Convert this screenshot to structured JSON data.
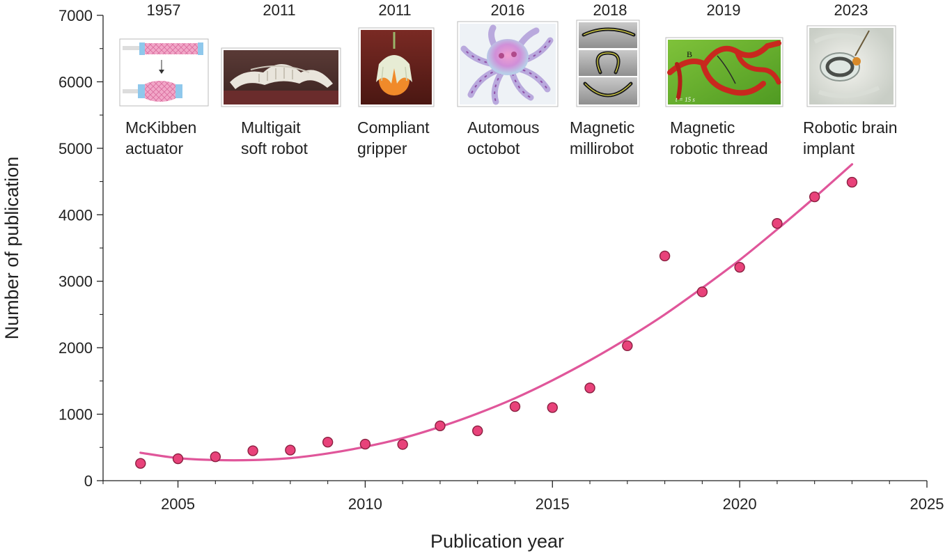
{
  "chart_data": {
    "type": "scatter",
    "title": "",
    "xlabel": "Publication year",
    "ylabel": "Number of publication",
    "xlim": [
      2003,
      2025
    ],
    "ylim": [
      0,
      7000
    ],
    "x_ticks": [
      "2005",
      "2010",
      "2015",
      "2020",
      "2025"
    ],
    "y_ticks": [
      "0",
      "1000",
      "2000",
      "3000",
      "4000",
      "5000",
      "6000",
      "7000"
    ],
    "grid": false,
    "series": [
      {
        "type": "scatter",
        "color": "#e8427a",
        "edge_color": "#8a1f40",
        "points": [
          {
            "x": 2004,
            "y": 260
          },
          {
            "x": 2005,
            "y": 330
          },
          {
            "x": 2006,
            "y": 360
          },
          {
            "x": 2007,
            "y": 450
          },
          {
            "x": 2008,
            "y": 460
          },
          {
            "x": 2009,
            "y": 580
          },
          {
            "x": 2010,
            "y": 550
          },
          {
            "x": 2011,
            "y": 545
          },
          {
            "x": 2012,
            "y": 825
          },
          {
            "x": 2013,
            "y": 750
          },
          {
            "x": 2014,
            "y": 1115
          },
          {
            "x": 2015,
            "y": 1100
          },
          {
            "x": 2016,
            "y": 1395
          },
          {
            "x": 2017,
            "y": 2030
          },
          {
            "x": 2018,
            "y": 3380
          },
          {
            "x": 2019,
            "y": 2840
          },
          {
            "x": 2020,
            "y": 3210
          },
          {
            "x": 2021,
            "y": 3870
          },
          {
            "x": 2022,
            "y": 4270
          },
          {
            "x": 2023,
            "y": 4490
          }
        ]
      },
      {
        "type": "line",
        "color": "#e0569a",
        "points": [
          {
            "x": 2004,
            "y": 420
          },
          {
            "x": 2005,
            "y": 340
          },
          {
            "x": 2006,
            "y": 310
          },
          {
            "x": 2007,
            "y": 310
          },
          {
            "x": 2008,
            "y": 340
          },
          {
            "x": 2009,
            "y": 410
          },
          {
            "x": 2010,
            "y": 510
          },
          {
            "x": 2011,
            "y": 640
          },
          {
            "x": 2012,
            "y": 810
          },
          {
            "x": 2013,
            "y": 1010
          },
          {
            "x": 2014,
            "y": 1240
          },
          {
            "x": 2015,
            "y": 1510
          },
          {
            "x": 2016,
            "y": 1810
          },
          {
            "x": 2017,
            "y": 2140
          },
          {
            "x": 2018,
            "y": 2500
          },
          {
            "x": 2019,
            "y": 2900
          },
          {
            "x": 2020,
            "y": 3320
          },
          {
            "x": 2021,
            "y": 3780
          },
          {
            "x": 2022,
            "y": 4260
          },
          {
            "x": 2023,
            "y": 4760
          }
        ]
      }
    ],
    "milestones": [
      {
        "year": "1957",
        "label_lines": [
          "McKibben",
          "actuator"
        ],
        "image": "mckibben-actuator-diagram"
      },
      {
        "year": "2011",
        "label_lines": [
          "Multigait",
          "soft robot"
        ],
        "image": "multigait-soft-robot-photo"
      },
      {
        "year": "2011",
        "label_lines": [
          "Compliant",
          "gripper"
        ],
        "image": "compliant-gripper-photo"
      },
      {
        "year": "2016",
        "label_lines": [
          "Automous",
          "octobot"
        ],
        "image": "octobot-photo"
      },
      {
        "year": "2018",
        "label_lines": [
          "Magnetic",
          "millirobot"
        ],
        "image": "millirobot-sequence-photo"
      },
      {
        "year": "2019",
        "label_lines": [
          "Magnetic",
          "robotic thread"
        ],
        "image": "robotic-thread-photo",
        "image_text": [
          "B",
          "t = 15 s"
        ]
      },
      {
        "year": "2023",
        "label_lines": [
          "Robotic brain",
          "implant"
        ],
        "image": "brain-implant-photo"
      }
    ]
  }
}
